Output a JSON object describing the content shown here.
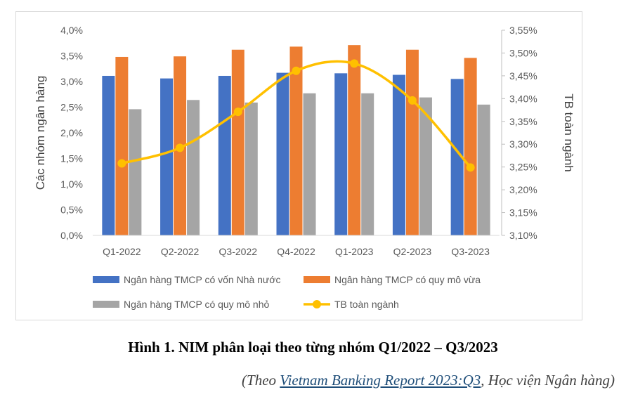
{
  "chart_data": {
    "type": "bar",
    "categories": [
      "Q1-2022",
      "Q2-2022",
      "Q3-2022",
      "Q4-2022",
      "Q1-2023",
      "Q2-2023",
      "Q3-2023"
    ],
    "series": [
      {
        "name": "Ngân hàng TMCP có vốn Nhà nước",
        "color": "#4472c4",
        "axis": "left",
        "values": [
          3.11,
          3.06,
          3.11,
          3.17,
          3.16,
          3.13,
          3.05
        ]
      },
      {
        "name": "Ngân hàng TMCP có quy mô vừa",
        "color": "#ed7d31",
        "axis": "left",
        "values": [
          3.48,
          3.49,
          3.62,
          3.68,
          3.71,
          3.62,
          3.46
        ]
      },
      {
        "name": "Ngân hàng TMCP có quy mô nhỏ",
        "color": "#a5a5a5",
        "axis": "left",
        "values": [
          2.46,
          2.64,
          2.59,
          2.77,
          2.77,
          2.69,
          2.55
        ]
      },
      {
        "name": "TB toàn ngành",
        "type": "line",
        "color": "#ffc000",
        "axis": "right",
        "values": [
          3.258,
          3.292,
          3.371,
          3.461,
          3.477,
          3.396,
          3.249
        ]
      }
    ],
    "ylabel": "Các nhóm ngân hàng",
    "y2label": "TB toàn ngành",
    "ylim": [
      0,
      4
    ],
    "y2lim": [
      3.1,
      3.55
    ],
    "yticks": [
      "0,0%",
      "0,5%",
      "1,0%",
      "1,5%",
      "2,0%",
      "2,5%",
      "3,0%",
      "3,5%",
      "4,0%"
    ],
    "y2ticks": [
      "3,10%",
      "3,15%",
      "3,20%",
      "3,25%",
      "3,30%",
      "3,35%",
      "3,40%",
      "3,45%",
      "3,50%",
      "3,55%"
    ],
    "grid": false,
    "legend_position": "bottom"
  },
  "caption": "Hình 1. NIM phân loại theo từng nhóm Q1/2022 – Q3/2023",
  "source": {
    "prefix": "(Theo ",
    "link_text": "Vietnam Banking Report 2023:Q3",
    "suffix": ", Học viện Ngân hàng)"
  }
}
